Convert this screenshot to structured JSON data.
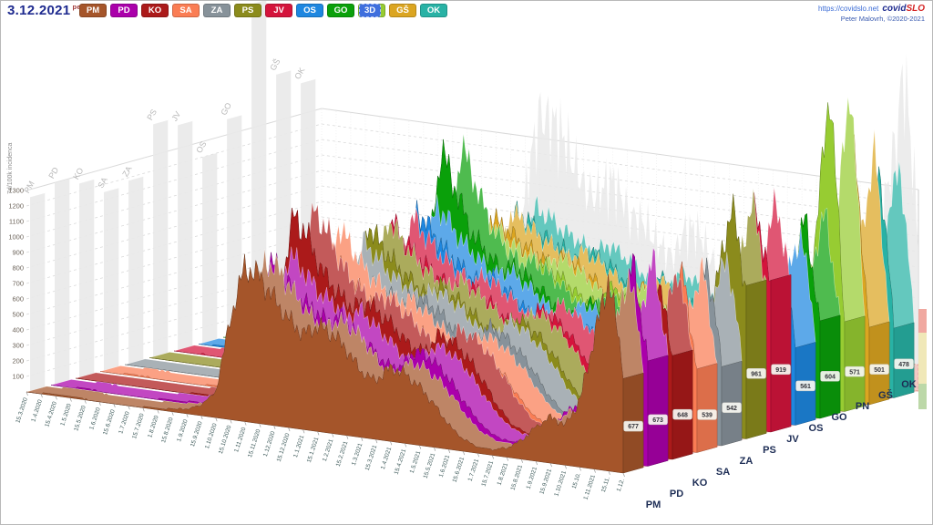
{
  "header": {
    "date": "3.12.2021",
    "weekday": "pet",
    "mode_button": "3D",
    "link": "https://covidslo.net",
    "brand_covid": "covid",
    "brand_slo": "SLO",
    "credit": "Peter Malovrh, ©2020-2021"
  },
  "chart_data": {
    "type": "area",
    "projection": "3d-ridgeline",
    "title": "7d/100k incidenca po regijah",
    "ylabel": "7d/100k incidenca",
    "ylim": [
      0,
      1300
    ],
    "y_ticks": [
      100,
      200,
      300,
      400,
      500,
      600,
      700,
      800,
      900,
      1000,
      1100,
      1200,
      1300
    ],
    "grid": true,
    "legend_position": "top",
    "x": [
      "15.3.2020",
      "1.4.2020",
      "15.4.2020",
      "1.5.2020",
      "15.5.2020",
      "1.6.2020",
      "15.6.2020",
      "1.7.2020",
      "15.7.2020",
      "1.8.2020",
      "15.8.2020",
      "1.9.2020",
      "15.9.2020",
      "1.10.2020",
      "15.10.2020",
      "1.11.2020",
      "15.11.2020",
      "1.12.2020",
      "15.12.2020",
      "1.1.2021",
      "15.1.2021",
      "1.2.2021",
      "15.2.2021",
      "1.3.2021",
      "15.3.2021",
      "1.4.2021",
      "15.4.2021",
      "1.5.2021",
      "15.5.2021",
      "1.6.2021",
      "15.6.2021",
      "1.7.2021",
      "15.7.2021",
      "1.8.2021",
      "15.8.2021",
      "1.9.2021",
      "15.9.2021",
      "1.10.2021",
      "15.10.",
      "1.11.2021",
      "15.11.",
      "1.12."
    ],
    "series": [
      {
        "name": "PM",
        "color": "#a5552a",
        "current": 677,
        "values": [
          3,
          5,
          8,
          6,
          5,
          4,
          3,
          3,
          5,
          10,
          18,
          30,
          70,
          160,
          650,
          1000,
          950,
          820,
          700,
          620,
          680,
          640,
          560,
          420,
          380,
          480,
          450,
          380,
          280,
          160,
          80,
          40,
          35,
          60,
          120,
          220,
          300,
          260,
          420,
          850,
          1250,
          677
        ]
      },
      {
        "name": "PD",
        "color": "#aa00aa",
        "current": 673,
        "values": [
          2,
          4,
          6,
          5,
          4,
          3,
          3,
          4,
          6,
          12,
          20,
          35,
          80,
          180,
          600,
          1000,
          900,
          780,
          720,
          650,
          700,
          600,
          520,
          430,
          420,
          540,
          510,
          430,
          310,
          180,
          90,
          45,
          40,
          70,
          130,
          240,
          330,
          280,
          450,
          900,
          1300,
          673
        ]
      },
      {
        "name": "KO",
        "color": "#ab1a1a",
        "current": 648,
        "values": [
          1,
          2,
          3,
          3,
          2,
          2,
          2,
          3,
          5,
          10,
          22,
          40,
          90,
          200,
          700,
          1250,
          1100,
          900,
          780,
          700,
          750,
          680,
          600,
          500,
          480,
          600,
          560,
          470,
          340,
          190,
          85,
          40,
          35,
          55,
          110,
          200,
          290,
          250,
          400,
          820,
          1200,
          648
        ]
      },
      {
        "name": "SA",
        "color": "#fa7d54",
        "current": 539,
        "values": [
          2,
          4,
          6,
          5,
          4,
          3,
          3,
          4,
          7,
          14,
          25,
          45,
          100,
          220,
          680,
          1100,
          950,
          820,
          740,
          660,
          690,
          610,
          540,
          450,
          430,
          520,
          480,
          400,
          300,
          170,
          80,
          38,
          33,
          60,
          115,
          210,
          300,
          260,
          410,
          830,
          1150,
          539
        ]
      },
      {
        "name": "ZA",
        "color": "#87929a",
        "current": 542,
        "values": [
          1,
          2,
          4,
          3,
          3,
          2,
          2,
          3,
          5,
          9,
          16,
          28,
          65,
          150,
          550,
          950,
          850,
          750,
          700,
          640,
          700,
          650,
          580,
          480,
          460,
          560,
          520,
          440,
          330,
          185,
          88,
          42,
          36,
          62,
          120,
          215,
          310,
          270,
          430,
          870,
          1180,
          542
        ]
      },
      {
        "name": "PS",
        "color": "#8b8b1c",
        "current": 961,
        "values": [
          1,
          2,
          3,
          3,
          2,
          2,
          2,
          3,
          5,
          10,
          18,
          32,
          75,
          170,
          600,
          1050,
          920,
          800,
          730,
          660,
          720,
          660,
          590,
          490,
          470,
          580,
          540,
          460,
          340,
          190,
          90,
          44,
          38,
          66,
          130,
          240,
          350,
          300,
          500,
          1000,
          1500,
          961
        ]
      },
      {
        "name": "JV",
        "color": "#d4143c",
        "current": 919,
        "values": [
          2,
          3,
          5,
          4,
          3,
          3,
          3,
          4,
          6,
          12,
          22,
          38,
          85,
          190,
          620,
          1020,
          900,
          790,
          720,
          650,
          700,
          640,
          570,
          480,
          470,
          590,
          550,
          470,
          350,
          200,
          95,
          46,
          40,
          70,
          140,
          260,
          380,
          320,
          520,
          1020,
          1450,
          919
        ]
      },
      {
        "name": "OS",
        "color": "#1e87e0",
        "current": 561,
        "values": [
          3,
          5,
          8,
          7,
          5,
          4,
          4,
          5,
          8,
          15,
          26,
          45,
          95,
          210,
          640,
          1060,
          930,
          810,
          730,
          655,
          695,
          625,
          555,
          465,
          445,
          545,
          505,
          425,
          315,
          175,
          82,
          40,
          35,
          63,
          125,
          225,
          325,
          280,
          440,
          880,
          1200,
          561
        ]
      },
      {
        "name": "GO",
        "color": "#0aa00a",
        "current": 604,
        "values": [
          2,
          4,
          7,
          6,
          4,
          3,
          3,
          4,
          7,
          13,
          24,
          42,
          90,
          200,
          660,
          1400,
          1150,
          900,
          780,
          690,
          710,
          640,
          570,
          475,
          455,
          555,
          515,
          435,
          320,
          180,
          85,
          41,
          36,
          64,
          128,
          230,
          335,
          290,
          460,
          920,
          1280,
          604
        ]
      },
      {
        "name": "PN",
        "color": "#97cc32",
        "current": 571,
        "values": [
          0,
          1,
          2,
          2,
          1,
          1,
          1,
          2,
          3,
          6,
          12,
          22,
          50,
          120,
          480,
          850,
          800,
          720,
          680,
          620,
          690,
          640,
          580,
          490,
          480,
          600,
          560,
          480,
          360,
          200,
          95,
          45,
          40,
          72,
          145,
          270,
          400,
          340,
          560,
          1100,
          2100,
          571
        ]
      },
      {
        "name": "GŠ",
        "color": "#dba521",
        "current": 501,
        "values": [
          1,
          2,
          3,
          3,
          2,
          2,
          2,
          3,
          4,
          8,
          14,
          25,
          55,
          130,
          500,
          880,
          820,
          740,
          690,
          630,
          690,
          635,
          570,
          480,
          465,
          575,
          535,
          455,
          340,
          190,
          90,
          43,
          38,
          68,
          135,
          250,
          370,
          315,
          510,
          1000,
          1600,
          501
        ]
      },
      {
        "name": "OK",
        "color": "#28b2a5",
        "current": 478,
        "values": [
          1,
          2,
          3,
          2,
          2,
          1,
          1,
          2,
          4,
          7,
          13,
          24,
          52,
          125,
          490,
          860,
          810,
          730,
          685,
          625,
          685,
          630,
          565,
          475,
          460,
          570,
          530,
          450,
          335,
          188,
          88,
          42,
          37,
          66,
          132,
          245,
          360,
          310,
          490,
          960,
          1500,
          478
        ]
      }
    ]
  },
  "decor": {
    "traffic_strip_colors": [
      "#f0a8a0",
      "#f0e8b8",
      "#bcd8a8"
    ],
    "pink_zone_color": "rgba(246,160,148,0.45)",
    "ghost_color": "#e9e9e9"
  }
}
